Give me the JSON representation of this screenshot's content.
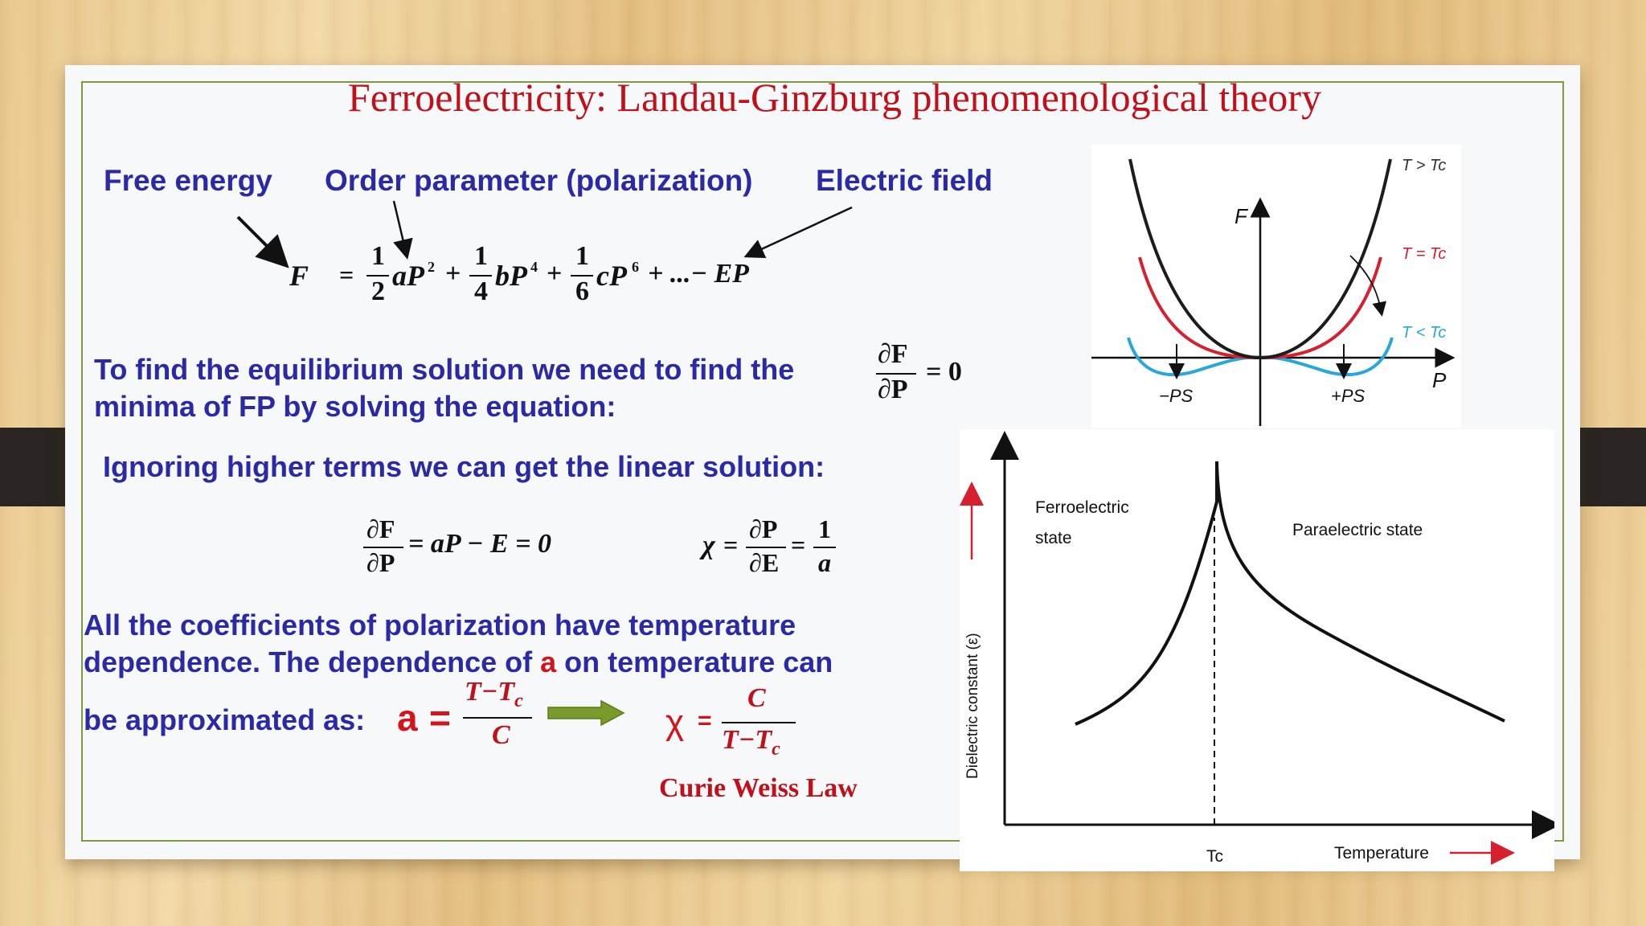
{
  "slide": {
    "title": "Ferroelectricity: Landau-Ginzburg phenomenological theory",
    "labels": {
      "free_energy": "Free energy",
      "order_parameter": "Order parameter (polarization)",
      "electric_field": "Electric field"
    },
    "landau_equation": "F = ½aP² + ¼bP⁴ + ⅙cP⁶ + ... − EP",
    "equilibrium_text": "To find the equilibrium solution we need to  find the minima of FP by solving the equation:",
    "equilibrium_equation": "∂F/∂P = 0",
    "linear_text": "Ignoring higher terms we can get the linear solution:",
    "linear_equation": "∂F/∂P = aP − E = 0",
    "susceptibility_equation": "χ = ∂P/∂E = 1/a",
    "coefficients_text_1": "All the coefficients of polarization have temperature",
    "coefficients_text_2a": "dependence. The dependence of",
    "coefficients_text_2b": "a",
    "coefficients_text_2c": "on temperature can",
    "coefficients_text_3": "be approximated as",
    "a_equation": "a = (T−Tc)/C",
    "chi_equation": "χ = C/(T−Tc)",
    "law_name": "Curie Weiss Law",
    "eq_parts": {
      "F": "F",
      "eq": "=",
      "n1": "1",
      "d2": "2",
      "aP2": "aP",
      "n1b": "1",
      "d4": "4",
      "bP4": "bP",
      "n1c": "1",
      "d6": "6",
      "cP6": "cP",
      "tail": "+ ...− EP",
      "exp2": "2",
      "exp4": "4",
      "exp6": "6",
      "plus": "+",
      "dF": "∂F",
      "dP": "∂P",
      "eq0": "= 0",
      "lin_rest": "= aP − E = 0",
      "chi": "χ",
      "dP2": "∂P",
      "dE": "∂E",
      "one": "1",
      "a": "a",
      "a_big": "a",
      "T_Tc": "T−T",
      "c_sub": "c",
      "C": "C",
      "chi_red": "χ",
      "C2": "C",
      "T_Tc2": "T−T",
      "c_sub2": "c",
      "eq_sign": "=",
      "colon": ":"
    }
  },
  "free_energy_plot": {
    "axis_f": "F",
    "axis_p": "P",
    "curves": [
      {
        "label": "T > Tc",
        "color": "#1c1c1c"
      },
      {
        "label": "T = Tc",
        "color": "#d62030"
      },
      {
        "label": "T < Tc",
        "color": "#27a8d8"
      }
    ],
    "minus_ps": "−PS",
    "plus_ps": "+PS"
  },
  "dielectric_plot": {
    "ylabel": "Dielectric constant (ε)",
    "xlabel": "Temperature",
    "tc_label": "Tc",
    "ferro_label_1": "Ferroelectric",
    "ferro_label_2": "state",
    "para_label": "Paraelectric state",
    "arrow_color": "#d62030"
  },
  "colors": {
    "title": "#c0111b",
    "body_text": "#2a2aa6",
    "highlight": "#d4141c",
    "border": "#7d9a3c",
    "arrow_green": "#7a9a2c"
  }
}
